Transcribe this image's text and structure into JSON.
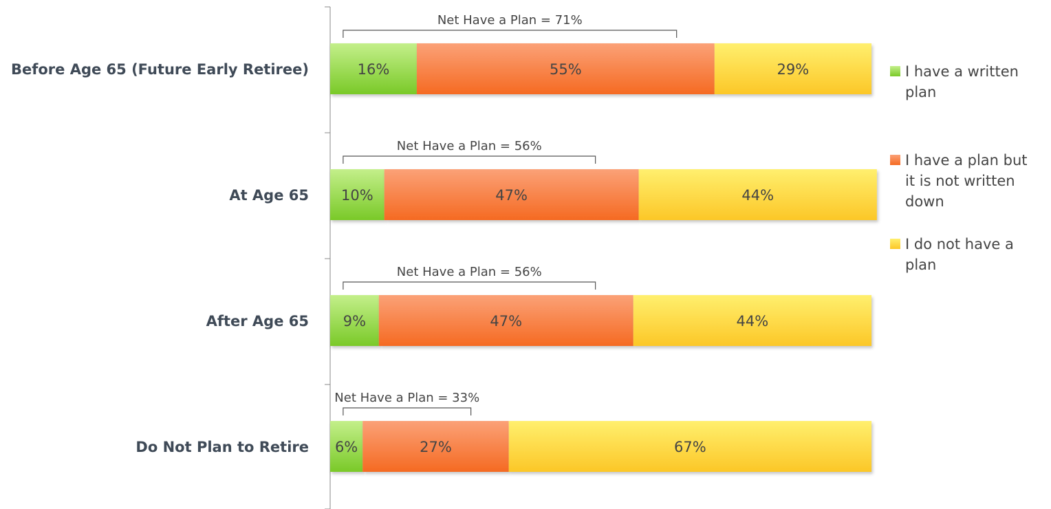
{
  "chart_data": {
    "type": "bar",
    "orientation": "horizontal",
    "stacked": true,
    "categories": [
      "Before Age 65 (Future Early Retiree)",
      "At Age 65",
      "After Age 65",
      "Do Not Plan to Retire"
    ],
    "series": [
      {
        "name": "I have a written plan",
        "values": [
          16,
          10,
          9,
          6
        ],
        "labels": [
          "16%",
          "10%",
          "9%",
          "6%"
        ],
        "color": "#8ed43a"
      },
      {
        "name": "I have a plan but it is not written down",
        "values": [
          55,
          47,
          47,
          27
        ],
        "labels": [
          "55%",
          "47%",
          "47%",
          "27%"
        ],
        "color": "#f5763a"
      },
      {
        "name": "I do not have a plan",
        "values": [
          29,
          44,
          44,
          67
        ],
        "labels": [
          "29%",
          "44%",
          "44%",
          "67%"
        ],
        "color": "#fdd43a"
      }
    ],
    "net_labels": [
      "Net Have a Plan = 71%",
      "Net Have a Plan = 56%",
      "Net Have a Plan = 56%",
      "Net Have a Plan = 33%"
    ],
    "net_values": [
      71,
      56,
      56,
      33
    ],
    "xlim": [
      0,
      100
    ],
    "legend": {
      "position": "right",
      "lines": [
        [
          "I have a written",
          "plan"
        ],
        [
          "I have a plan but",
          "it is not written",
          "down"
        ],
        [
          "I do not have a",
          "plan"
        ]
      ]
    },
    "grid": false
  }
}
